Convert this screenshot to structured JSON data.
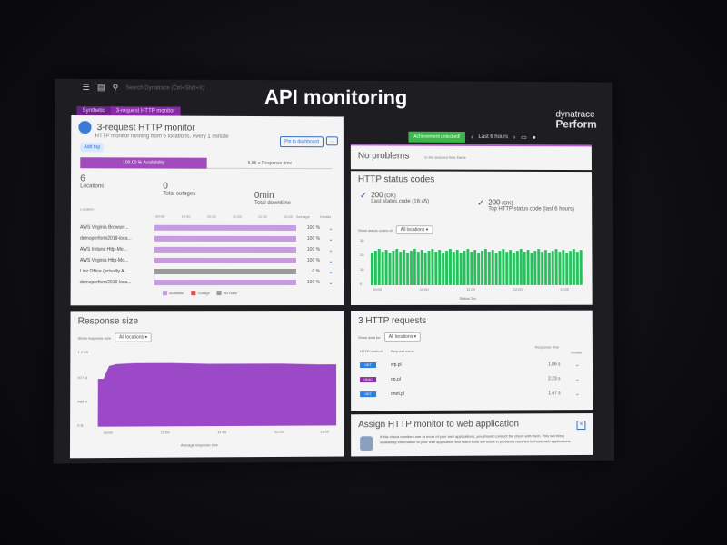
{
  "slide": {
    "title": "API monitoring",
    "brand_top": "dynatrace",
    "brand_bottom": "Perform"
  },
  "topbar": {
    "search": "Search Dynatrace (Ctrl+Shift+X)"
  },
  "breadcrumb": [
    "Synthetic",
    "3-request HTTP monitor"
  ],
  "toolbar": {
    "badge": "Achievement unlocked!",
    "timeframe": "Last 6 hours"
  },
  "monitor": {
    "title": "3-request HTTP monitor",
    "subtitle": "HTTP monitor running from 6 locations, every 1 minute",
    "add_tag": "Add tag",
    "pin": "Pin to dashboard",
    "more": "...",
    "tabs": [
      "100.00 % Availability",
      "5.55 s Response time"
    ],
    "stats": [
      {
        "num": "6",
        "label": "Locations"
      },
      {
        "num": "0",
        "label": "Total outages"
      },
      {
        "num": "0min",
        "label": "Total downtime"
      }
    ],
    "location_header": "Location",
    "avg_header": "Average",
    "details_header": "Details",
    "times": [
      "09:40",
      "10:00",
      "10:30",
      "11:00",
      "11:30",
      "12:00"
    ],
    "locations": [
      {
        "name": "AWS Virginia Browser...",
        "avg": "100 %",
        "state": "available"
      },
      {
        "name": "demoperform2019-loca...",
        "avg": "100 %",
        "state": "available"
      },
      {
        "name": "AWS Ireland Http-Mo...",
        "avg": "100 %",
        "state": "available"
      },
      {
        "name": "AWS Virginia Http-Mo...",
        "avg": "100 %",
        "state": "available"
      },
      {
        "name": "Linz Office (actually A...",
        "avg": "0 %",
        "state": "nodata"
      },
      {
        "name": "demoperform2019-loca...",
        "avg": "100 %",
        "state": "available"
      }
    ],
    "legend": [
      "Available",
      "Outage",
      "No Data"
    ],
    "colors": {
      "available": "#c79be0",
      "outage": "#e05050",
      "nodata": "#9a9a9a"
    }
  },
  "response_size": {
    "title": "Response size",
    "show_label": "Show response size",
    "dropdown": "All locations",
    "y_ticks": [
      "1.4 kB",
      "977 B",
      "488 B",
      "0 B"
    ],
    "x_ticks": [
      "09:00",
      "10:00",
      "11:00",
      "12:00",
      "13:00"
    ],
    "caption": "Average response size",
    "color": "#9b49c7"
  },
  "problems": {
    "title": "No problems",
    "subtitle": "in the selected time frame"
  },
  "status_codes": {
    "title": "HTTP status codes",
    "items": [
      {
        "code": "200",
        "suffix": "(OK)",
        "label": "Last status code (16:45)"
      },
      {
        "code": "200",
        "suffix": "(OK)",
        "label": "Top HTTP status code (last 6 hours)"
      }
    ],
    "show_label": "Show status codes of",
    "dropdown": "All locations",
    "y_ticks": [
      "30",
      "20",
      "10",
      "0"
    ],
    "x_ticks": [
      "09:00",
      "10:00",
      "11:00",
      "12:00",
      "13:00"
    ],
    "caption": "Status 2xx",
    "color": "#23c05b"
  },
  "requests": {
    "title": "3 HTTP requests",
    "show_label": "Show data for",
    "dropdown": "All locations",
    "headers": [
      "HTTP method",
      "Request name",
      "Response time",
      "Details"
    ],
    "items": [
      {
        "method": "GET",
        "name": "wp.pl",
        "time": "1.86 s",
        "color": "#2f7fe0"
      },
      {
        "method": "HEAD",
        "name": "op.pl",
        "time": "2.23 s",
        "color": "#8a2aa8"
      },
      {
        "method": "GET",
        "name": "onet.pl",
        "time": "1.47 s",
        "color": "#2f7fe0"
      }
    ]
  },
  "assign": {
    "title": "Assign HTTP monitor to web application",
    "body": "If this check monitors one or more of your web applications, you should connect the check with them. This will bring availability information to your web application and failed tests will result in problems reported to those web applications."
  }
}
